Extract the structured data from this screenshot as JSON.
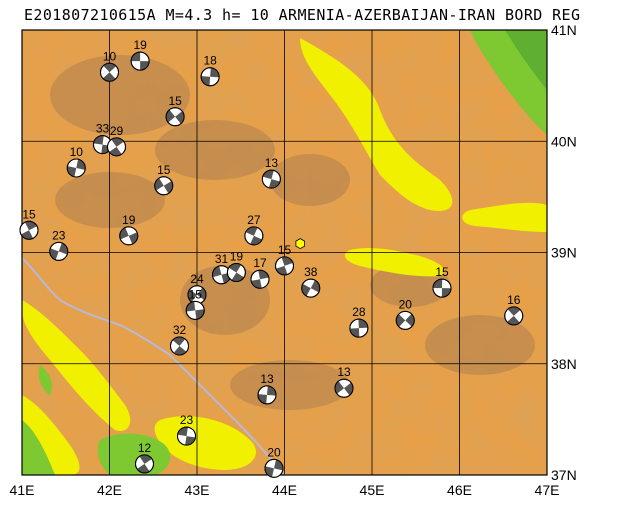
{
  "header": {
    "title": "E201807210615A M=4.3 h= 10 ARMENIA-AZERBAIJAN-IRAN BORD REG"
  },
  "map": {
    "lon_labels": [
      "41E",
      "42E",
      "43E",
      "44E",
      "45E",
      "46E",
      "47E"
    ],
    "lat_labels": [
      "41N",
      "40N",
      "39N",
      "38N",
      "37N"
    ],
    "colors": {
      "lowland_green": "#7ec832",
      "light_yellow": "#f0f000",
      "orange": "#e8a048",
      "tan": "#d89a4c",
      "brown_high": "#c08a4e",
      "grid": "#000000",
      "river": "#b8b8d8"
    },
    "epicenter": {
      "lon": 44.18,
      "lat": 39.08,
      "color": "#ffff00"
    },
    "events": [
      {
        "depth": "19",
        "lon": 42.35,
        "lat": 40.72
      },
      {
        "depth": "10",
        "lon": 42.0,
        "lat": 40.62
      },
      {
        "depth": "18",
        "lon": 43.15,
        "lat": 40.58
      },
      {
        "depth": "15",
        "lon": 42.75,
        "lat": 40.22
      },
      {
        "depth": "33",
        "lon": 41.92,
        "lat": 39.97
      },
      {
        "depth": "29",
        "lon": 42.08,
        "lat": 39.95
      },
      {
        "depth": "10",
        "lon": 41.62,
        "lat": 39.76
      },
      {
        "depth": "15",
        "lon": 42.62,
        "lat": 39.6
      },
      {
        "depth": "13",
        "lon": 43.85,
        "lat": 39.66
      },
      {
        "depth": "15",
        "lon": 41.08,
        "lat": 39.2
      },
      {
        "depth": "23",
        "lon": 41.42,
        "lat": 39.01
      },
      {
        "depth": "19",
        "lon": 42.22,
        "lat": 39.15
      },
      {
        "depth": "27",
        "lon": 43.65,
        "lat": 39.15
      },
      {
        "depth": "15",
        "lon": 44.0,
        "lat": 38.88
      },
      {
        "depth": "38",
        "lon": 44.3,
        "lat": 38.68
      },
      {
        "depth": "31",
        "lon": 43.28,
        "lat": 38.8
      },
      {
        "depth": "19",
        "lon": 43.45,
        "lat": 38.82
      },
      {
        "depth": "17",
        "lon": 43.72,
        "lat": 38.76
      },
      {
        "depth": "24",
        "lon": 43.0,
        "lat": 38.62
      },
      {
        "depth": "15",
        "lon": 42.98,
        "lat": 38.48
      },
      {
        "depth": "32",
        "lon": 42.8,
        "lat": 38.16
      },
      {
        "depth": "28",
        "lon": 44.85,
        "lat": 38.32
      },
      {
        "depth": "20",
        "lon": 45.38,
        "lat": 38.39
      },
      {
        "depth": "15",
        "lon": 45.8,
        "lat": 38.68
      },
      {
        "depth": "16",
        "lon": 46.62,
        "lat": 38.43
      },
      {
        "depth": "13",
        "lon": 43.8,
        "lat": 37.72
      },
      {
        "depth": "13",
        "lon": 44.68,
        "lat": 37.78
      },
      {
        "depth": "23",
        "lon": 42.88,
        "lat": 37.35
      },
      {
        "depth": "12",
        "lon": 42.4,
        "lat": 37.1
      },
      {
        "depth": "20",
        "lon": 43.88,
        "lat": 37.06
      }
    ]
  }
}
